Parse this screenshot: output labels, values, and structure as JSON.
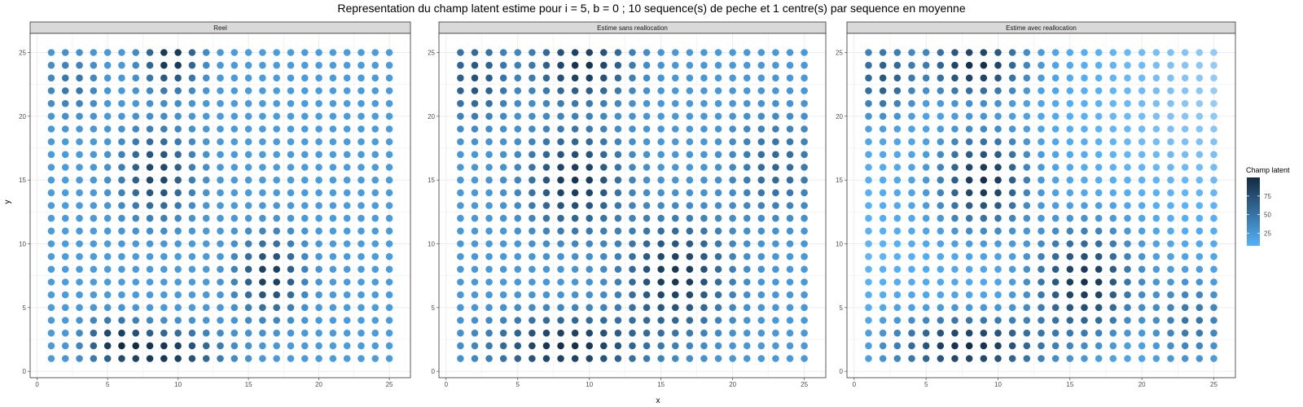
{
  "chart_data": {
    "type": "scatter",
    "title": "Representation du champ latent estime pour i = 5, b = 0 ; 10 sequence(s) de peche et 1 centre(s) par sequence en moyenne",
    "xlabel": "x",
    "ylabel": "y",
    "xlim": [
      -0.5,
      26.5
    ],
    "ylim": [
      -0.5,
      26.5
    ],
    "xticks": [
      0,
      5,
      10,
      15,
      20,
      25
    ],
    "yticks": [
      0,
      5,
      10,
      15,
      20,
      25
    ],
    "grid": true,
    "grid_x": [
      1,
      25
    ],
    "grid_y": [
      1,
      25
    ],
    "legend": {
      "title": "Champ latent",
      "position": "right",
      "ticks": [
        25,
        50,
        75
      ],
      "min": 0,
      "max": 100,
      "low_color": "#56B1F7",
      "high_color": "#132B43"
    },
    "panels": [
      {
        "label": "Reel",
        "hotspots": [
          {
            "x": 9.5,
            "y": 24.5,
            "value": 97,
            "sx": 1.3,
            "sy": 1.6
          },
          {
            "x": 8.5,
            "y": 15.5,
            "value": 82,
            "sx": 1.7,
            "sy": 2.3
          },
          {
            "x": 9,
            "y": 1.5,
            "value": 95,
            "sx": 2.6,
            "sy": 1.2
          },
          {
            "x": 16.5,
            "y": 7.5,
            "value": 90,
            "sx": 1.5,
            "sy": 2.0
          },
          {
            "x": 5.5,
            "y": 2.5,
            "value": 75,
            "sx": 1.4,
            "sy": 1.1
          },
          {
            "x": 2.5,
            "y": 22.5,
            "value": 45,
            "sx": 1.3,
            "sy": 1.6
          }
        ],
        "baseline": 16
      },
      {
        "label": "Estime sans reallocation",
        "hotspots": [
          {
            "x": 9.5,
            "y": 24,
            "value": 95,
            "sx": 2.2,
            "sy": 1.8
          },
          {
            "x": 9,
            "y": 15,
            "value": 92,
            "sx": 2.2,
            "sy": 2.6
          },
          {
            "x": 8.5,
            "y": 2,
            "value": 97,
            "sx": 3.5,
            "sy": 1.6
          },
          {
            "x": 16,
            "y": 7.5,
            "value": 92,
            "sx": 2.4,
            "sy": 2.8
          },
          {
            "x": 2,
            "y": 23,
            "value": 70,
            "sx": 1.6,
            "sy": 2.2
          },
          {
            "x": 23,
            "y": 16,
            "value": 55,
            "sx": 2.0,
            "sy": 2.5
          }
        ],
        "baseline": 18
      },
      {
        "label": "Estime avec reallocation",
        "hotspots": [
          {
            "x": 8.5,
            "y": 24,
            "value": 98,
            "sx": 2.2,
            "sy": 1.6
          },
          {
            "x": 9,
            "y": 15,
            "value": 96,
            "sx": 2.0,
            "sy": 2.4
          },
          {
            "x": 8,
            "y": 2,
            "value": 98,
            "sx": 3.4,
            "sy": 1.5
          },
          {
            "x": 16,
            "y": 7,
            "value": 93,
            "sx": 2.3,
            "sy": 2.7
          },
          {
            "x": 2,
            "y": 23,
            "value": 65,
            "sx": 1.5,
            "sy": 2.0
          },
          {
            "x": 23.5,
            "y": 4,
            "value": 45,
            "sx": 1.8,
            "sy": 2.2
          }
        ],
        "baseline": 6
      }
    ],
    "grid_points": {
      "x_from": 1,
      "x_to": 25,
      "y_from": 1,
      "y_to": 25,
      "step": 1
    }
  }
}
